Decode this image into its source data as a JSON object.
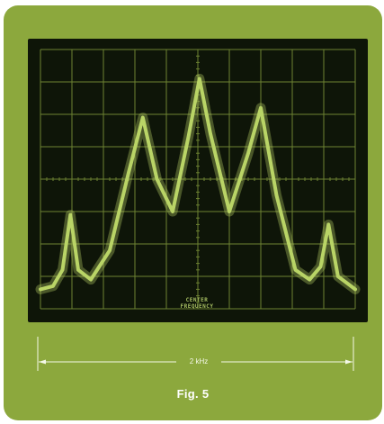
{
  "figure": {
    "caption": "Fig. 5",
    "span_label": "2 kHz",
    "center_label_line1": "CENTER",
    "center_label_line2": "FREQUENCY"
  },
  "colors": {
    "card_background": "#8ca83d",
    "screen_background": "#0e1508",
    "trace": "#b9d466",
    "graticule": "#6d8232"
  },
  "chart_data": {
    "type": "line",
    "title": "",
    "xlabel": "",
    "ylabel": "",
    "grid": true,
    "x_divisions": 10,
    "y_divisions": 8,
    "xlim": [
      0,
      10
    ],
    "ylim": [
      0,
      8
    ],
    "series": [
      {
        "values_xy": [
          [
            0.0,
            0.6
          ],
          [
            0.4,
            0.7
          ],
          [
            0.7,
            1.2
          ],
          [
            0.95,
            2.9
          ],
          [
            1.2,
            1.2
          ],
          [
            1.6,
            0.9
          ],
          [
            2.2,
            1.8
          ],
          [
            2.8,
            4.2
          ],
          [
            3.25,
            5.9
          ],
          [
            3.7,
            4.0
          ],
          [
            4.2,
            3.0
          ],
          [
            4.7,
            5.3
          ],
          [
            5.05,
            7.1
          ],
          [
            5.4,
            5.4
          ],
          [
            6.0,
            3.0
          ],
          [
            6.6,
            4.8
          ],
          [
            7.0,
            6.2
          ],
          [
            7.5,
            3.5
          ],
          [
            8.1,
            1.2
          ],
          [
            8.55,
            0.9
          ],
          [
            8.9,
            1.3
          ],
          [
            9.15,
            2.6
          ],
          [
            9.45,
            1.0
          ],
          [
            10.0,
            0.6
          ]
        ]
      }
    ]
  }
}
